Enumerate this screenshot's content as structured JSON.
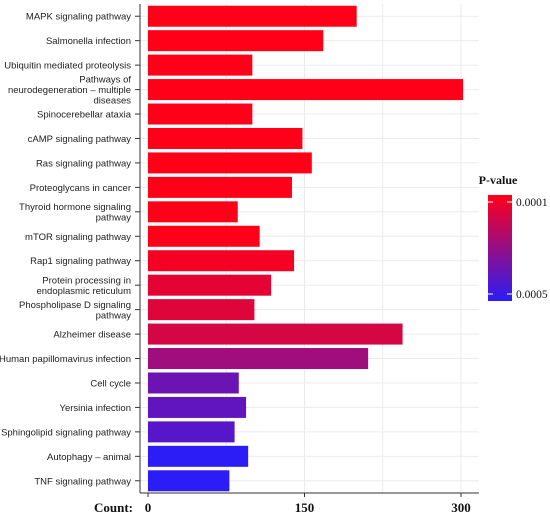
{
  "chart_data": {
    "type": "bar",
    "orientation": "horizontal",
    "categories": [
      "MAPK signaling pathway",
      "Salmonella infection",
      "Ubiquitin mediated proteolysis",
      "Pathways of\nneurodegeneration – multiple\ndiseases",
      "Spinocerebellar ataxia",
      "cAMP signaling pathway",
      "Ras signaling pathway",
      "Proteoglycans in cancer",
      "Thyroid hormone signaling\npathway",
      "mTOR signaling pathway",
      "Rap1 signaling pathway",
      "Protein processing in\nendoplasmic reticulum",
      "Phospholipase D signaling\npathway",
      "Alzheimer disease",
      "Human papillomavirus infection",
      "Cell cycle",
      "Yersinia infection",
      "Sphingolipid signaling pathway",
      "Autophagy – animal",
      "TNF signaling pathway"
    ],
    "values": [
      200,
      168,
      100,
      302,
      100,
      148,
      157,
      138,
      86,
      107,
      140,
      118,
      102,
      244,
      211,
      87,
      94,
      83,
      96,
      78
    ],
    "pvalues": [
      0.0001,
      0.0001,
      0.0001,
      0.0001,
      0.0001,
      0.0001,
      0.0001,
      0.0001,
      0.0001,
      0.0001,
      0.00012,
      0.00015,
      0.00016,
      0.00018,
      0.00028,
      0.00038,
      0.0004,
      0.00042,
      0.0005,
      0.0005
    ],
    "xlabel": "Count:",
    "ylabel": "",
    "title": "",
    "xlim": [
      -5,
      318
    ],
    "xticks": [
      0,
      150,
      300
    ],
    "grid": true,
    "legend": {
      "title": "P-value",
      "position": "right",
      "labels": [
        "0.0001",
        "0.0005"
      ],
      "colors": {
        "low": "#ff0018",
        "high": "#2c1cf6"
      }
    }
  }
}
